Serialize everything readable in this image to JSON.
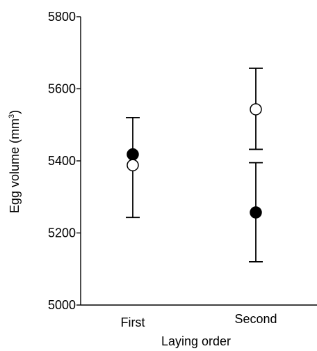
{
  "chart_data": {
    "type": "scatter",
    "title": "",
    "xlabel": "Laying order",
    "ylabel_main": "Egg volume (mm",
    "ylabel_sup": "3",
    "ylabel_close": ")",
    "categories": [
      "First",
      "Second"
    ],
    "ylim": [
      5000,
      5800
    ],
    "yticks": [
      5000,
      5200,
      5400,
      5600,
      5800
    ],
    "ytick_labels": [
      "5000",
      "5200",
      "5400",
      "5600",
      "5800"
    ],
    "grid": false,
    "series": [
      {
        "marker": "filled-circle",
        "color": "#000000",
        "points": [
          {
            "category": "First",
            "y": 5418,
            "err_low": null,
            "err_high": 5520
          },
          {
            "category": "Second",
            "y": 5257,
            "err_low": 5120,
            "err_high": 5395
          }
        ]
      },
      {
        "marker": "open-circle",
        "color": "#ffffff",
        "points": [
          {
            "category": "First",
            "y": 5388,
            "err_low": 5243,
            "err_high": null
          },
          {
            "category": "Second",
            "y": 5543,
            "err_low": 5432,
            "err_high": 5657
          }
        ]
      }
    ]
  }
}
